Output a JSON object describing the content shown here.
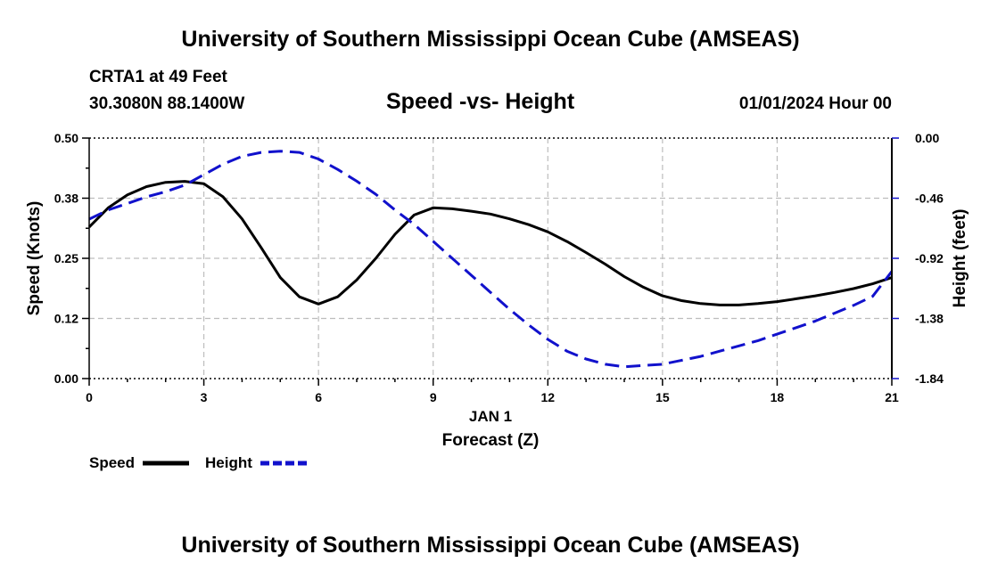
{
  "header": {
    "title": "University of Southern Mississippi Ocean Cube (AMSEAS)",
    "station": "CRTA1 at 49 Feet",
    "coords": "30.3080N  88.1400W",
    "subtitle": "Speed -vs- Height",
    "datetime": "01/01/2024 Hour 00",
    "footer_title": "University of Southern Mississippi Ocean Cube (AMSEAS)"
  },
  "chart_data": {
    "type": "line",
    "title": "Speed -vs- Height",
    "xlabel": "Forecast (Z)",
    "xsublabel": "JAN 1",
    "ylabel_left": "Speed (Knots)",
    "ylabel_right": "Height (feet)",
    "xlim": [
      0,
      21
    ],
    "ylim_left": [
      0,
      0.5
    ],
    "ylim_right": [
      -1.84,
      0
    ],
    "x_ticks": [
      0,
      3,
      6,
      9,
      12,
      15,
      18,
      21
    ],
    "x_tick_labels": [
      "0",
      "3",
      "6",
      "9",
      "12",
      "15",
      "18",
      "21"
    ],
    "y_left_ticks": [
      0,
      0.125,
      0.25,
      0.375,
      0.5
    ],
    "y_left_tick_labels": [
      "0.00",
      "0.12",
      "0.25",
      "0.38",
      "0.50"
    ],
    "y_right_ticks": [
      0,
      -0.46,
      -0.92,
      -1.38,
      -1.84
    ],
    "y_right_tick_labels": [
      "0.00",
      "-0.46",
      "-0.92",
      "-1.38",
      "-1.84"
    ],
    "grid": true,
    "series": [
      {
        "name": "Speed",
        "axis": "left",
        "color": "#000000",
        "style": "solid",
        "x": [
          0,
          0.5,
          1,
          1.5,
          2,
          2.5,
          3,
          3.5,
          4,
          4.5,
          5,
          5.5,
          6,
          6.5,
          7,
          7.5,
          8,
          8.5,
          9,
          9.5,
          10,
          10.5,
          11,
          11.5,
          12,
          12.5,
          13,
          13.5,
          14,
          14.5,
          15,
          15.5,
          16,
          16.5,
          17,
          17.5,
          18,
          18.5,
          19,
          19.5,
          20,
          20.5,
          21
        ],
        "values": [
          0.315,
          0.355,
          0.382,
          0.399,
          0.408,
          0.41,
          0.405,
          0.378,
          0.332,
          0.272,
          0.21,
          0.17,
          0.155,
          0.17,
          0.205,
          0.25,
          0.3,
          0.34,
          0.355,
          0.353,
          0.348,
          0.342,
          0.332,
          0.32,
          0.305,
          0.285,
          0.262,
          0.238,
          0.212,
          0.19,
          0.172,
          0.162,
          0.156,
          0.153,
          0.153,
          0.156,
          0.16,
          0.166,
          0.172,
          0.179,
          0.187,
          0.197,
          0.21
        ]
      },
      {
        "name": "Height",
        "axis": "right",
        "color": "#1111cc",
        "style": "dashed",
        "x": [
          0,
          0.5,
          1,
          1.5,
          2,
          2.5,
          3,
          3.5,
          4,
          4.5,
          5,
          5.5,
          6,
          6.5,
          7,
          7.5,
          8,
          8.5,
          9,
          9.5,
          10,
          10.5,
          11,
          11.5,
          12,
          12.5,
          13,
          13.5,
          14,
          14.5,
          15,
          15.5,
          16,
          16.5,
          17,
          17.5,
          18,
          18.5,
          19,
          19.5,
          20,
          20.5,
          21
        ],
        "values": [
          -0.62,
          -0.55,
          -0.5,
          -0.45,
          -0.41,
          -0.36,
          -0.28,
          -0.2,
          -0.14,
          -0.11,
          -0.1,
          -0.11,
          -0.16,
          -0.24,
          -0.33,
          -0.43,
          -0.55,
          -0.66,
          -0.79,
          -0.92,
          -1.05,
          -1.18,
          -1.31,
          -1.43,
          -1.54,
          -1.63,
          -1.69,
          -1.73,
          -1.75,
          -1.74,
          -1.73,
          -1.7,
          -1.67,
          -1.63,
          -1.59,
          -1.55,
          -1.5,
          -1.45,
          -1.4,
          -1.34,
          -1.28,
          -1.21,
          -1.02
        ]
      }
    ],
    "legend": [
      {
        "label": "Speed",
        "color": "#000000",
        "style": "solid"
      },
      {
        "label": "Height",
        "color": "#1111cc",
        "style": "dashed"
      }
    ],
    "legend_position": "bottom-left"
  }
}
